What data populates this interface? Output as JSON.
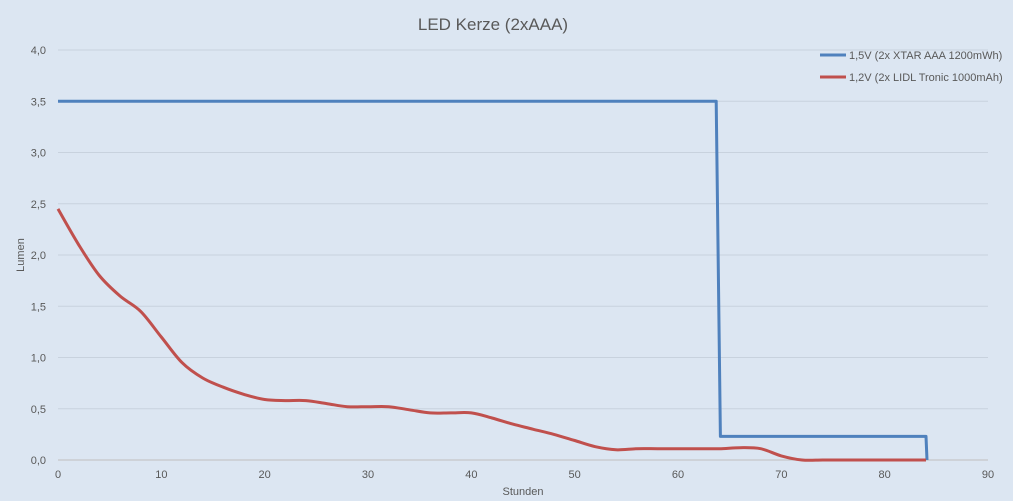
{
  "chart_data": {
    "type": "line",
    "title": "LED Kerze (2xAAA)",
    "xlabel": "Stunden",
    "ylabel": "Lumen",
    "xlim": [
      0,
      90
    ],
    "ylim": [
      0,
      4
    ],
    "xticks": [
      0,
      10,
      20,
      30,
      40,
      50,
      60,
      70,
      80,
      90
    ],
    "xtick_labels": [
      "0",
      "10",
      "20",
      "30",
      "40",
      "50",
      "60",
      "70",
      "80",
      "90"
    ],
    "yticks": [
      0,
      0.5,
      1,
      1.5,
      2,
      2.5,
      3,
      3.5,
      4
    ],
    "ytick_labels": [
      "0,0",
      "0,5",
      "1,0",
      "1,5",
      "2,0",
      "2,5",
      "3,0",
      "3,5",
      "4,0"
    ],
    "grid": true,
    "legend_position": "top-right",
    "series": [
      {
        "name": "1,5V (2x XTAR AAA 1200mWh)",
        "color": "#4f81bd",
        "smooth": false,
        "x": [
          0,
          63.7,
          64.1,
          84.0,
          84.1
        ],
        "y": [
          3.5,
          3.5,
          0.23,
          0.23,
          0.0
        ]
      },
      {
        "name": "1,2V (2x LIDL Tronic 1000mAh)",
        "color": "#c0504d",
        "smooth": true,
        "x": [
          0,
          2,
          4,
          6,
          8,
          10,
          12,
          14,
          16,
          18,
          20,
          22,
          24,
          26,
          28,
          30,
          32,
          34,
          36,
          38,
          40,
          42,
          44,
          46,
          48,
          50,
          52,
          54,
          56,
          58,
          60,
          62,
          64,
          66,
          68,
          70,
          72,
          74,
          76,
          78,
          80,
          82,
          84
        ],
        "y": [
          2.45,
          2.1,
          1.8,
          1.6,
          1.45,
          1.2,
          0.95,
          0.8,
          0.71,
          0.64,
          0.59,
          0.58,
          0.58,
          0.55,
          0.52,
          0.52,
          0.52,
          0.49,
          0.46,
          0.46,
          0.46,
          0.41,
          0.35,
          0.3,
          0.25,
          0.19,
          0.13,
          0.1,
          0.11,
          0.11,
          0.11,
          0.11,
          0.11,
          0.12,
          0.11,
          0.04,
          0.0,
          0.0,
          0.0,
          0.0,
          0.0,
          0.0,
          0.0
        ]
      }
    ]
  }
}
